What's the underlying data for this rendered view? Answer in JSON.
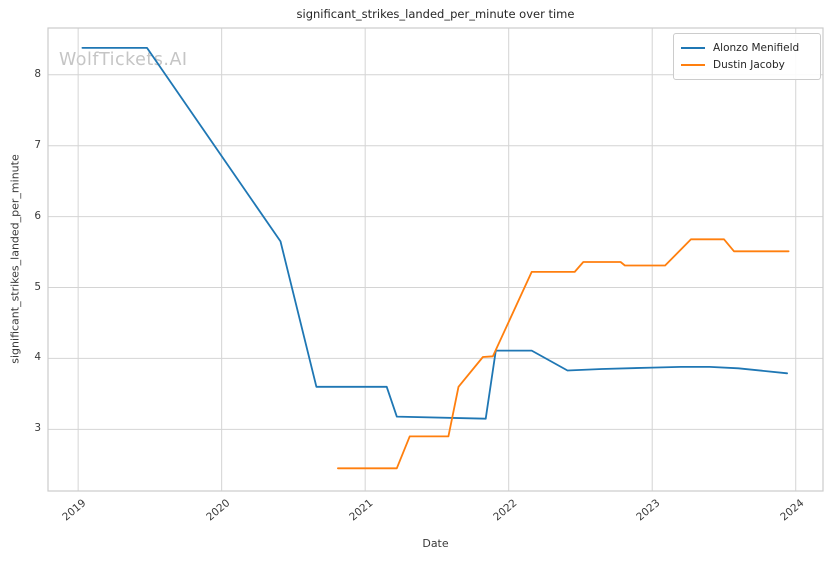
{
  "watermark": "WolfTickets.AI",
  "colors": {
    "grid": "#d4d4d4",
    "spine": "#cccccc",
    "watermark": "#c5c5c5",
    "series_blue": "#1f77b4",
    "series_orange": "#ff7f0e"
  },
  "chart_data": {
    "type": "line",
    "title": "significant_strikes_landed_per_minute over time",
    "xlabel": "Date",
    "ylabel": "significant_strikes_landed_per_minute",
    "grid": true,
    "legend_position": "upper right",
    "xlim": [
      2018.79,
      2024.19
    ],
    "ylim": [
      2.13,
      8.66
    ],
    "xticks": {
      "values": [
        2019,
        2020,
        2021,
        2022,
        2023,
        2024
      ],
      "labels": [
        "2019",
        "2020",
        "2021",
        "2022",
        "2023",
        "2024"
      ]
    },
    "yticks": {
      "values": [
        3,
        4,
        5,
        6,
        7,
        8
      ],
      "labels": [
        "3",
        "4",
        "5",
        "6",
        "7",
        "8"
      ]
    },
    "series": [
      {
        "name": "Alonzo Menifield",
        "color": "#1f77b4",
        "points": [
          [
            2019.03,
            8.38
          ],
          [
            2019.48,
            8.38
          ],
          [
            2020.41,
            5.65
          ],
          [
            2020.66,
            3.6
          ],
          [
            2021.15,
            3.6
          ],
          [
            2021.22,
            3.18
          ],
          [
            2021.84,
            3.15
          ],
          [
            2021.91,
            4.11
          ],
          [
            2022.16,
            4.11
          ],
          [
            2022.41,
            3.83
          ],
          [
            2022.65,
            3.85
          ],
          [
            2023.0,
            3.87
          ],
          [
            2023.2,
            3.88
          ],
          [
            2023.4,
            3.88
          ],
          [
            2023.6,
            3.86
          ],
          [
            2023.94,
            3.79
          ]
        ]
      },
      {
        "name": "Dustin Jacoby",
        "color": "#ff7f0e",
        "points": [
          [
            2020.81,
            2.45
          ],
          [
            2021.22,
            2.45
          ],
          [
            2021.31,
            2.9
          ],
          [
            2021.58,
            2.9
          ],
          [
            2021.65,
            3.6
          ],
          [
            2021.82,
            4.02
          ],
          [
            2021.89,
            4.03
          ],
          [
            2022.16,
            5.22
          ],
          [
            2022.46,
            5.22
          ],
          [
            2022.52,
            5.36
          ],
          [
            2022.78,
            5.36
          ],
          [
            2022.81,
            5.31
          ],
          [
            2023.09,
            5.31
          ],
          [
            2023.27,
            5.68
          ],
          [
            2023.5,
            5.68
          ],
          [
            2023.57,
            5.51
          ],
          [
            2023.95,
            5.51
          ]
        ]
      }
    ]
  }
}
